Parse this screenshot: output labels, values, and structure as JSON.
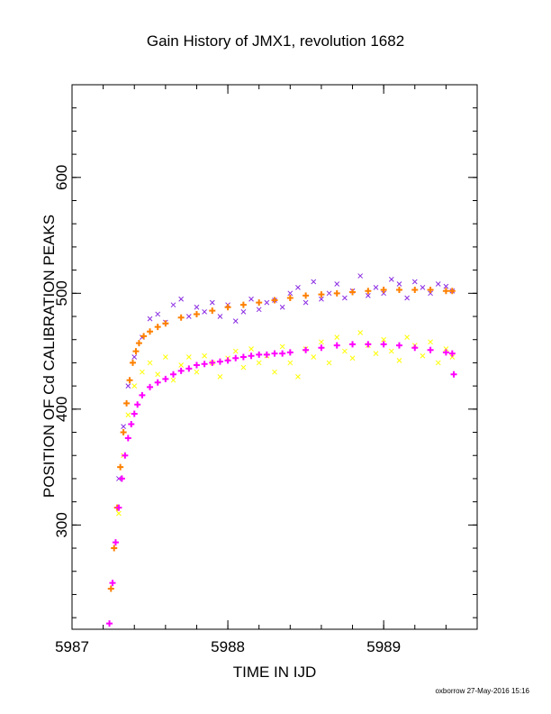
{
  "chart_data": {
    "type": "scatter",
    "title": "Gain History of JMX1, revolution 1682",
    "xlabel": "TIME IN IJD",
    "ylabel": "POSITION OF Cd CALIBRATION PEAKS",
    "xlim": [
      5987,
      5989.6
    ],
    "ylim": [
      210,
      680
    ],
    "x_ticks": [
      5987,
      5988,
      5989
    ],
    "y_ticks": [
      300,
      400,
      500,
      600
    ],
    "grid": false,
    "legend": "none",
    "series": [
      {
        "color": "#8a2be2",
        "marker": "x",
        "x": [
          5987.3,
          5987.33,
          5987.36,
          5987.4,
          5987.45,
          5987.5,
          5987.55,
          5987.6,
          5987.65,
          5987.7,
          5987.75,
          5987.8,
          5987.85,
          5987.9,
          5987.95,
          5988.0,
          5988.05,
          5988.1,
          5988.15,
          5988.2,
          5988.25,
          5988.3,
          5988.35,
          5988.4,
          5988.45,
          5988.5,
          5988.55,
          5988.6,
          5988.65,
          5988.7,
          5988.75,
          5988.8,
          5988.85,
          5988.9,
          5988.95,
          5989.0,
          5989.05,
          5989.1,
          5989.15,
          5989.2,
          5989.25,
          5989.3,
          5989.35,
          5989.4,
          5989.44
        ],
        "y": [
          340,
          385,
          420,
          445,
          462,
          478,
          482,
          475,
          490,
          495,
          480,
          488,
          484,
          492,
          480,
          490,
          476,
          484,
          495,
          486,
          492,
          494,
          488,
          500,
          505,
          492,
          510,
          495,
          500,
          508,
          496,
          502,
          515,
          498,
          505,
          500,
          512,
          508,
          496,
          510,
          505,
          500,
          508,
          506,
          502
        ]
      },
      {
        "color": "#ffff00",
        "marker": "x",
        "x": [
          5987.3,
          5987.33,
          5987.36,
          5987.4,
          5987.45,
          5987.5,
          5987.55,
          5987.6,
          5987.65,
          5987.7,
          5987.75,
          5987.8,
          5987.85,
          5987.9,
          5987.95,
          5988.0,
          5988.05,
          5988.1,
          5988.15,
          5988.2,
          5988.25,
          5988.3,
          5988.35,
          5988.4,
          5988.45,
          5988.5,
          5988.55,
          5988.6,
          5988.65,
          5988.7,
          5988.75,
          5988.8,
          5988.85,
          5988.9,
          5988.95,
          5989.0,
          5989.05,
          5989.1,
          5989.15,
          5989.2,
          5989.25,
          5989.3,
          5989.35,
          5989.4,
          5989.44
        ],
        "y": [
          310,
          360,
          395,
          420,
          432,
          440,
          430,
          445,
          425,
          438,
          445,
          432,
          446,
          440,
          428,
          444,
          450,
          436,
          452,
          440,
          446,
          432,
          454,
          440,
          428,
          452,
          445,
          458,
          440,
          462,
          450,
          444,
          466,
          455,
          448,
          460,
          450,
          442,
          462,
          455,
          446,
          458,
          440,
          452,
          445
        ]
      },
      {
        "color": "#ff8000",
        "marker": "+",
        "x": [
          5987.25,
          5987.27,
          5987.29,
          5987.31,
          5987.33,
          5987.35,
          5987.37,
          5987.39,
          5987.41,
          5987.43,
          5987.46,
          5987.5,
          5987.55,
          5987.6,
          5987.7,
          5987.8,
          5987.9,
          5988.0,
          5988.1,
          5988.2,
          5988.3,
          5988.4,
          5988.5,
          5988.6,
          5988.7,
          5988.8,
          5988.9,
          5989.0,
          5989.1,
          5989.2,
          5989.3,
          5989.4,
          5989.44
        ],
        "y": [
          245,
          280,
          315,
          350,
          380,
          405,
          425,
          440,
          450,
          457,
          463,
          467,
          471,
          474,
          479,
          482,
          485,
          488,
          490,
          492,
          494,
          496,
          498,
          499,
          500,
          501,
          502,
          503,
          503,
          503,
          503,
          502,
          502
        ]
      },
      {
        "color": "#ff00ff",
        "marker": "+",
        "x": [
          5987.24,
          5987.26,
          5987.28,
          5987.3,
          5987.32,
          5987.34,
          5987.36,
          5987.38,
          5987.4,
          5987.42,
          5987.45,
          5987.5,
          5987.55,
          5987.6,
          5987.65,
          5987.7,
          5987.75,
          5987.8,
          5987.85,
          5987.9,
          5987.95,
          5988.0,
          5988.05,
          5988.1,
          5988.15,
          5988.2,
          5988.25,
          5988.3,
          5988.35,
          5988.4,
          5988.5,
          5988.6,
          5988.7,
          5988.8,
          5988.9,
          5989.0,
          5989.1,
          5989.2,
          5989.3,
          5989.4,
          5989.44,
          5989.45
        ],
        "y": [
          215,
          250,
          285,
          315,
          340,
          360,
          375,
          387,
          396,
          404,
          412,
          419,
          423,
          426,
          430,
          433,
          435,
          438,
          439,
          440,
          441,
          442,
          444,
          445,
          446,
          447,
          447,
          448,
          448,
          449,
          451,
          453,
          455,
          456,
          456,
          456,
          455,
          453,
          451,
          449,
          448,
          430
        ]
      }
    ]
  },
  "footer": "oxborrow 27-May-2016 15:16"
}
